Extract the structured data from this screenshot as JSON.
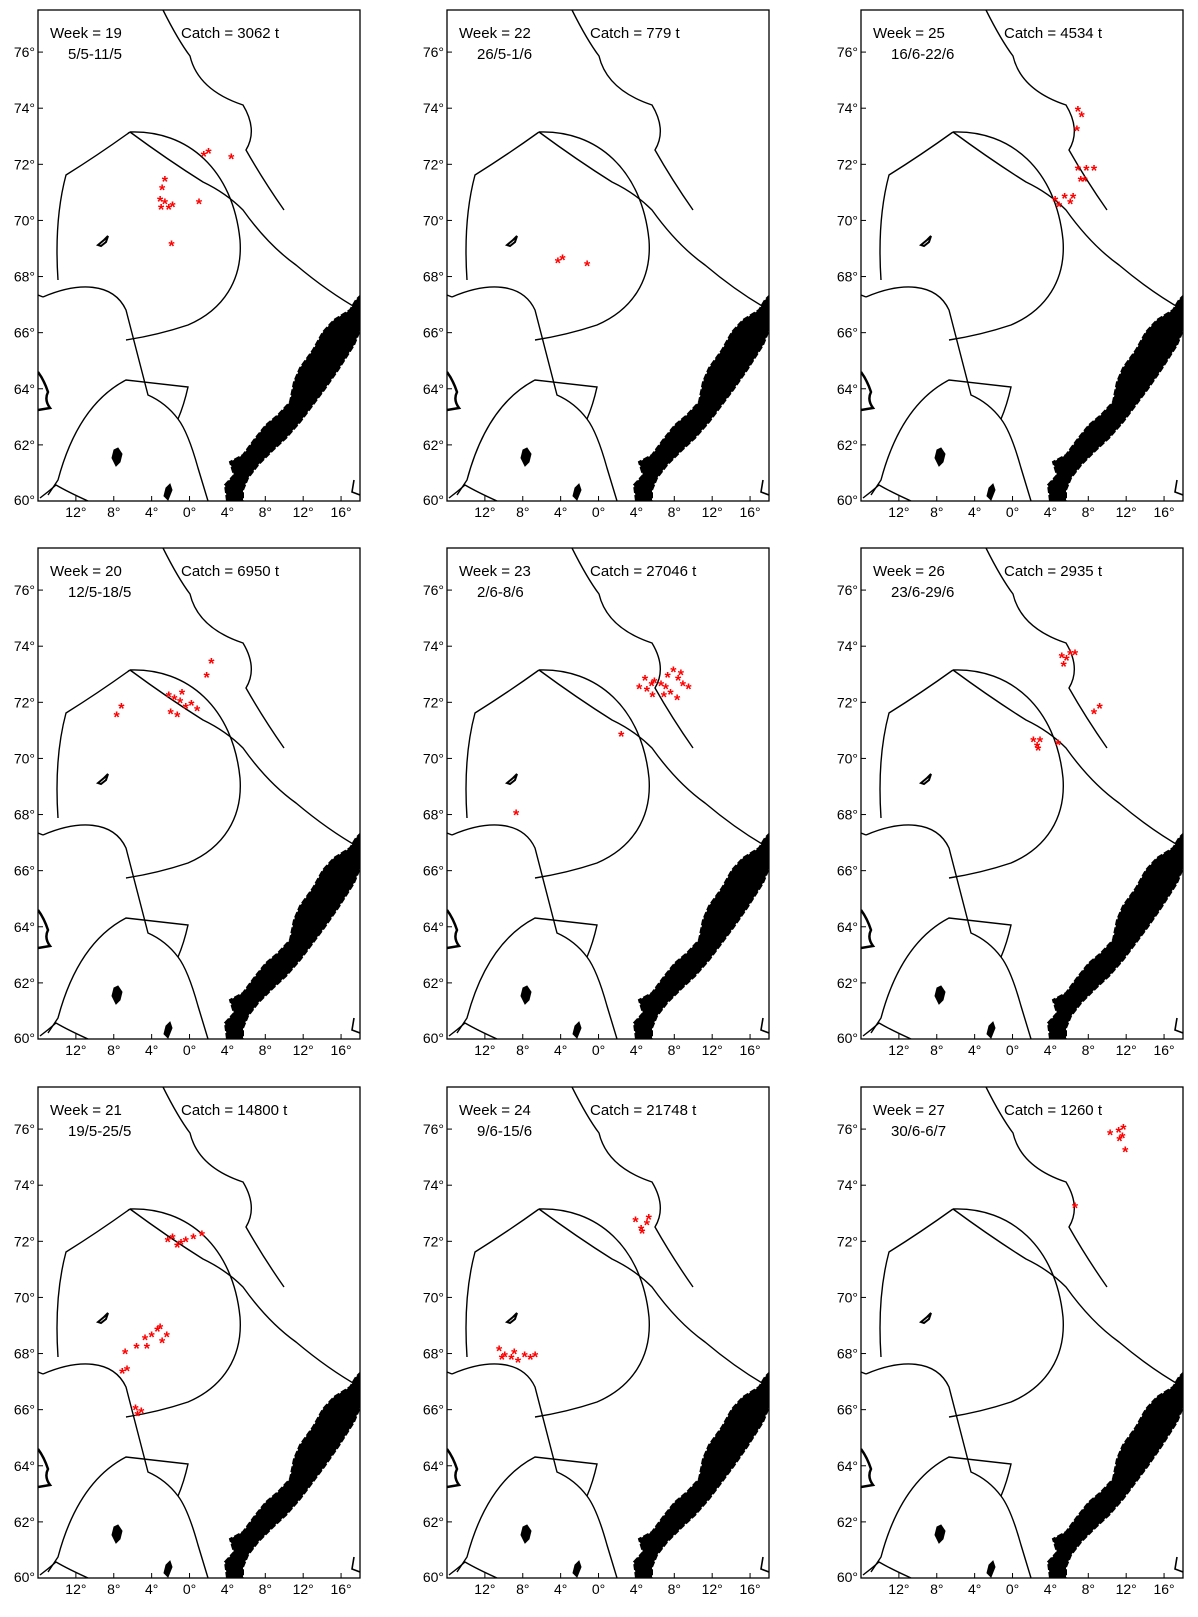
{
  "figure": {
    "lat_ticks": [
      "60°",
      "62°",
      "64°",
      "66°",
      "68°",
      "70°",
      "72°",
      "74°",
      "76°"
    ],
    "lon_ticks": [
      "12°",
      "8°",
      "4°",
      "0°",
      "4°",
      "8°",
      "12°",
      "16°"
    ],
    "colors": {
      "catch": "#ff0000",
      "line": "#000000",
      "background": "#ffffff"
    },
    "panels": [
      {
        "week_label": "Week = 19",
        "catch_label": "Catch = 3062 t",
        "date_range": "5/5-11/5",
        "catch_points": [
          [
            -2.6,
            71.4
          ],
          [
            -2.9,
            71.1
          ],
          [
            -3.1,
            70.7
          ],
          [
            -2.6,
            70.6
          ],
          [
            -2.2,
            70.4
          ],
          [
            -1.8,
            70.5
          ],
          [
            -3.0,
            70.4
          ],
          [
            1.0,
            70.6
          ],
          [
            1.5,
            72.3
          ],
          [
            2.0,
            72.4
          ],
          [
            4.4,
            72.2
          ],
          [
            -1.9,
            69.1
          ]
        ]
      },
      {
        "week_label": "Week = 22",
        "catch_label": "Catch = 779 t",
        "date_range": "26/5-1/6",
        "catch_points": [
          [
            -4.3,
            68.5
          ],
          [
            -3.8,
            68.6
          ],
          [
            -1.2,
            68.4
          ]
        ]
      },
      {
        "week_label": "Week = 25",
        "catch_label": "Catch = 4534 t",
        "date_range": "16/6-22/6",
        "catch_points": [
          [
            6.9,
            73.9
          ],
          [
            7.3,
            73.7
          ],
          [
            6.8,
            73.2
          ],
          [
            6.9,
            71.8
          ],
          [
            7.8,
            71.8
          ],
          [
            7.2,
            71.4
          ],
          [
            8.6,
            71.8
          ],
          [
            7.6,
            71.4
          ],
          [
            5.5,
            70.8
          ],
          [
            6.1,
            70.6
          ],
          [
            4.5,
            70.7
          ],
          [
            4.9,
            70.5
          ],
          [
            6.4,
            70.8
          ]
        ]
      },
      {
        "week_label": "Week = 20",
        "catch_label": "Catch = 6950 t",
        "date_range": "12/5-18/5",
        "catch_points": [
          [
            -2.2,
            72.2
          ],
          [
            -1.6,
            72.1
          ],
          [
            -1.0,
            72.0
          ],
          [
            -0.4,
            71.8
          ],
          [
            0.2,
            71.9
          ],
          [
            0.8,
            71.7
          ],
          [
            -0.8,
            72.3
          ],
          [
            -2.0,
            71.6
          ],
          [
            -1.3,
            71.5
          ],
          [
            -7.7,
            71.5
          ],
          [
            -7.2,
            71.8
          ],
          [
            2.3,
            73.4
          ],
          [
            1.8,
            72.9
          ]
        ]
      },
      {
        "week_label": "Week = 23",
        "catch_label": "Catch = 27046 t",
        "date_range": "2/6-8/6",
        "catch_points": [
          [
            4.3,
            72.5
          ],
          [
            5.1,
            72.4
          ],
          [
            5.9,
            72.7
          ],
          [
            6.6,
            72.6
          ],
          [
            7.3,
            72.9
          ],
          [
            7.9,
            73.1
          ],
          [
            8.4,
            72.8
          ],
          [
            8.9,
            72.6
          ],
          [
            7.6,
            72.3
          ],
          [
            6.9,
            72.2
          ],
          [
            5.7,
            72.2
          ],
          [
            8.3,
            72.1
          ],
          [
            4.9,
            72.8
          ],
          [
            5.6,
            72.6
          ],
          [
            8.7,
            73.0
          ],
          [
            7.1,
            72.5
          ],
          [
            9.5,
            72.5
          ],
          [
            2.4,
            70.8
          ],
          [
            -8.7,
            68.0
          ]
        ]
      },
      {
        "week_label": "Week = 26",
        "catch_label": "Catch = 2935 t",
        "date_range": "23/6-29/6",
        "catch_points": [
          [
            5.2,
            73.6
          ],
          [
            5.7,
            73.5
          ],
          [
            6.1,
            73.7
          ],
          [
            5.4,
            73.3
          ],
          [
            6.6,
            73.7
          ],
          [
            2.2,
            70.6
          ],
          [
            2.6,
            70.4
          ],
          [
            2.9,
            70.6
          ],
          [
            2.7,
            70.3
          ],
          [
            4.8,
            70.5
          ],
          [
            8.6,
            71.6
          ],
          [
            9.2,
            71.8
          ]
        ]
      },
      {
        "week_label": "Week = 21",
        "catch_label": "Catch = 14800 t",
        "date_range": "19/5-25/5",
        "catch_points": [
          [
            -5.7,
            66.0
          ],
          [
            -5.1,
            65.9
          ],
          [
            -5.5,
            65.8
          ],
          [
            -7.1,
            67.3
          ],
          [
            -6.6,
            67.4
          ],
          [
            -6.8,
            68.0
          ],
          [
            -5.6,
            68.2
          ],
          [
            -4.7,
            68.5
          ],
          [
            -4.0,
            68.6
          ],
          [
            -3.4,
            68.8
          ],
          [
            -2.9,
            68.4
          ],
          [
            -2.4,
            68.6
          ],
          [
            -4.5,
            68.2
          ],
          [
            -3.1,
            68.9
          ],
          [
            -2.3,
            72.0
          ],
          [
            -1.3,
            71.8
          ],
          [
            -0.4,
            72.0
          ],
          [
            0.4,
            72.1
          ],
          [
            1.3,
            72.2
          ],
          [
            -1.8,
            72.1
          ],
          [
            -0.9,
            71.9
          ]
        ]
      },
      {
        "week_label": "Week = 24",
        "catch_label": "Catch = 21748 t",
        "date_range": "9/6-15/6",
        "catch_points": [
          [
            -10.5,
            68.1
          ],
          [
            -9.9,
            67.9
          ],
          [
            -9.2,
            67.8
          ],
          [
            -8.5,
            67.7
          ],
          [
            -7.8,
            67.9
          ],
          [
            -7.2,
            67.8
          ],
          [
            -10.2,
            67.8
          ],
          [
            -8.9,
            68.0
          ],
          [
            -6.7,
            67.9
          ],
          [
            3.9,
            72.7
          ],
          [
            4.5,
            72.4
          ],
          [
            5.1,
            72.6
          ],
          [
            4.6,
            72.3
          ],
          [
            5.3,
            72.8
          ]
        ]
      },
      {
        "week_label": "Week = 27",
        "catch_label": "Catch = 1260 t",
        "date_range": "30/6-6/7",
        "catch_points": [
          [
            10.3,
            75.8
          ],
          [
            11.2,
            75.9
          ],
          [
            11.7,
            76.0
          ],
          [
            11.3,
            75.6
          ],
          [
            11.6,
            75.7
          ],
          [
            11.9,
            75.2
          ],
          [
            6.6,
            73.2
          ]
        ]
      }
    ]
  }
}
